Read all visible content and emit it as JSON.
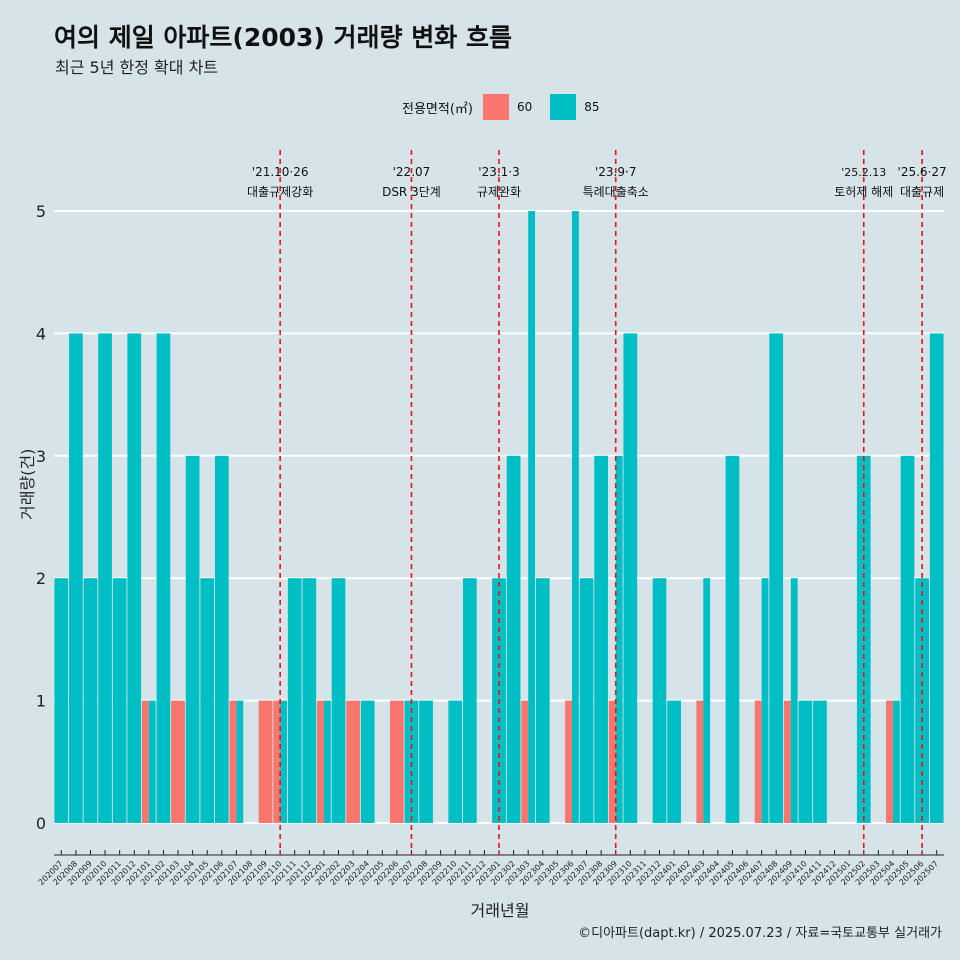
{
  "title": "여의 제일 아파트(2003) 거래량 변화 흐름",
  "subtitle": "최근 5년 한정 확대 차트",
  "legend": {
    "title": "전용면적(㎡)",
    "items": [
      {
        "label": "60",
        "color": "#f8766d"
      },
      {
        "label": "85",
        "color": "#00bfc4"
      }
    ]
  },
  "caption": "©디아파트(dapt.kr) / 2025.07.23 / 자료=국토교통부 실거래가",
  "chart_data": {
    "type": "bar",
    "title": "여의 제일 아파트(2003) 거래량 변화 흐름",
    "subtitle": "최근 5년 한정 확대 차트",
    "xlabel": "거래년월",
    "ylabel": "거래량(건)",
    "ylim": [
      0,
      5
    ],
    "yticks": [
      0,
      1,
      2,
      3,
      4,
      5
    ],
    "grid": true,
    "legend_position": "top",
    "categories": [
      "202007",
      "202008",
      "202009",
      "202010",
      "202011",
      "202012",
      "202101",
      "202102",
      "202103",
      "202104",
      "202105",
      "202106",
      "202107",
      "202108",
      "202109",
      "202110",
      "202111",
      "202112",
      "202201",
      "202202",
      "202203",
      "202204",
      "202205",
      "202206",
      "202207",
      "202208",
      "202209",
      "202210",
      "202211",
      "202212",
      "202301",
      "202302",
      "202303",
      "202304",
      "202305",
      "202306",
      "202307",
      "202308",
      "202309",
      "202310",
      "202311",
      "202312",
      "202401",
      "202402",
      "202403",
      "202404",
      "202405",
      "202406",
      "202407",
      "202408",
      "202409",
      "202410",
      "202411",
      "202412",
      "202501",
      "202502",
      "202503",
      "202504",
      "202505",
      "202506",
      "202507"
    ],
    "series": [
      {
        "name": "60",
        "color": "#f8766d",
        "values": [
          0,
          0,
          0,
          0,
          0,
          0,
          1,
          0,
          1,
          0,
          0,
          0,
          1,
          0,
          1,
          1,
          0,
          0,
          1,
          0,
          1,
          0,
          0,
          1,
          0,
          0,
          0,
          0,
          0,
          0,
          0,
          0,
          1,
          0,
          0,
          1,
          0,
          0,
          1,
          0,
          0,
          0,
          0,
          0,
          1,
          0,
          0,
          0,
          1,
          0,
          1,
          0,
          0,
          0,
          0,
          0,
          0,
          1,
          0,
          0,
          0
        ]
      },
      {
        "name": "85",
        "color": "#00bfc4",
        "values": [
          2,
          4,
          2,
          4,
          2,
          4,
          1,
          4,
          0,
          3,
          2,
          3,
          1,
          0,
          0,
          1,
          2,
          2,
          1,
          2,
          0,
          1,
          0,
          0,
          1,
          1,
          0,
          1,
          2,
          0,
          2,
          3,
          5,
          2,
          0,
          5,
          2,
          3,
          3,
          4,
          0,
          2,
          1,
          0,
          2,
          0,
          3,
          0,
          2,
          4,
          2,
          1,
          1,
          0,
          0,
          3,
          0,
          1,
          3,
          2,
          4
        ]
      }
    ],
    "annotations": [
      {
        "date": "'21.10·26",
        "label": "대출규제강화",
        "month": "202110"
      },
      {
        "date": "'22.07",
        "label": "DSR 3단계",
        "month": "202207"
      },
      {
        "date": "'23.1·3",
        "label": "규제완화",
        "month": "202301"
      },
      {
        "date": "'23.9·7",
        "label": "특례대출축소",
        "month": "202309"
      },
      {
        "date": "'25.2.13",
        "label": "토허제 해제",
        "month": "202502"
      },
      {
        "date": "'25.6·27",
        "label": "대출규제",
        "month": "202506"
      }
    ]
  }
}
